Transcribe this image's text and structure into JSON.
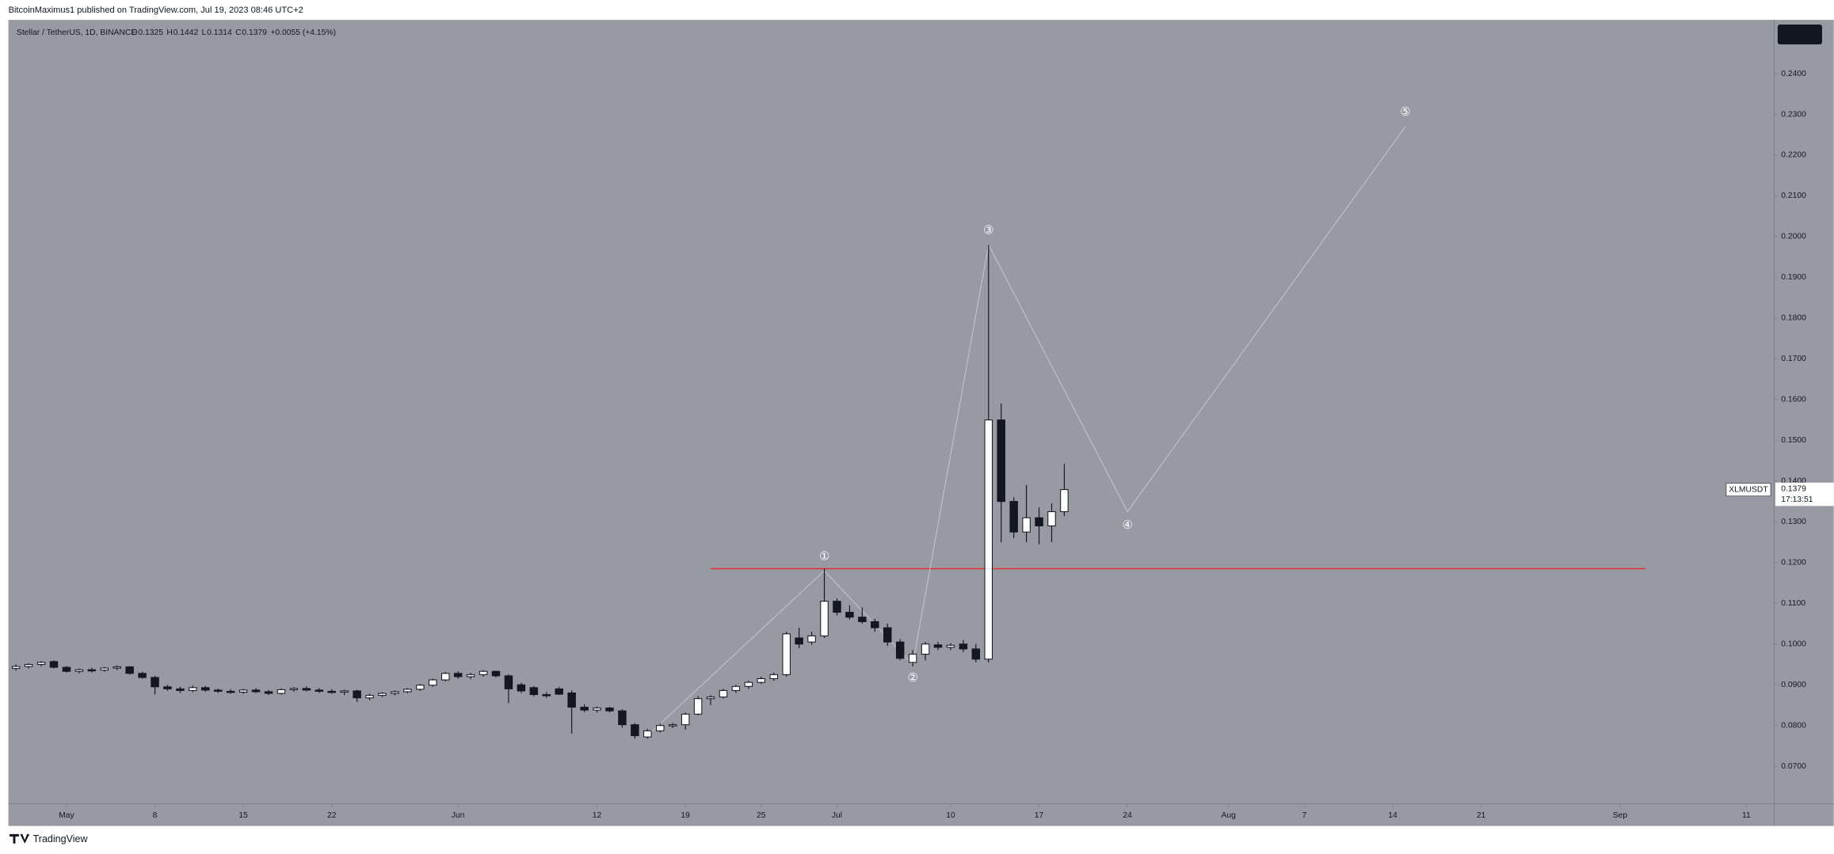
{
  "header": "BitcoinMaximus1 published on TradingView.com, Jul 19, 2023 08:46 UTC+2",
  "footer": "TradingView",
  "chart_data": {
    "type": "candlestick",
    "legend": {
      "symbol": "Stellar / TetherUS, 1D, BINANCE",
      "items": [
        "O",
        "0.1325",
        "H",
        "0.1442",
        "L",
        "0.1314",
        "C",
        "0.1379",
        "+0.0055 (+4.15%)"
      ]
    },
    "last_price": {
      "symbol": "XLMUSDT",
      "price": "0.1379",
      "countdown": "17:13:51"
    },
    "x": [
      -4,
      -3,
      -2,
      -1,
      0,
      1,
      2,
      3,
      4,
      5,
      6,
      7,
      8,
      9,
      10,
      11,
      12,
      13,
      14,
      15,
      16,
      17,
      18,
      19,
      20,
      21,
      22,
      23,
      24,
      25,
      26,
      27,
      28,
      29,
      30,
      31,
      32,
      33,
      34,
      35,
      36,
      37,
      38,
      39,
      40,
      41,
      42,
      43,
      44,
      45,
      46,
      47,
      48,
      49,
      50,
      51,
      52,
      53,
      54,
      55,
      56,
      57,
      58,
      59,
      60,
      61,
      62,
      63,
      64,
      65,
      66,
      67,
      68,
      69,
      70,
      71,
      72,
      73,
      74,
      75,
      76,
      77,
      78,
      79
    ],
    "open": [
      0.094,
      0.0945,
      0.095,
      0.0957,
      0.0943,
      0.0933,
      0.0937,
      0.0936,
      0.0941,
      0.0944,
      0.0928,
      0.0918,
      0.0895,
      0.089,
      0.0886,
      0.0893,
      0.0887,
      0.0884,
      0.0882,
      0.0887,
      0.0883,
      0.0879,
      0.0888,
      0.0891,
      0.0887,
      0.0884,
      0.0882,
      0.0885,
      0.0868,
      0.0874,
      0.0879,
      0.0883,
      0.0889,
      0.0899,
      0.0912,
      0.0928,
      0.092,
      0.0925,
      0.0933,
      0.0922,
      0.09,
      0.0893,
      0.0876,
      0.089,
      0.088,
      0.0845,
      0.0838,
      0.0843,
      0.0836,
      0.0802,
      0.0772,
      0.0787,
      0.08,
      0.0802,
      0.0828,
      0.0866,
      0.087,
      0.0886,
      0.0896,
      0.0906,
      0.0915,
      0.0925,
      0.1015,
      0.1005,
      0.102,
      0.1105,
      0.1078,
      0.1066,
      0.1055,
      0.104,
      0.1005,
      0.0955,
      0.0975,
      0.0998,
      0.0992,
      0.1,
      0.0988,
      0.0963,
      0.155,
      0.135,
      0.1275,
      0.131,
      0.129,
      0.1325
    ],
    "high": [
      0.095,
      0.0953,
      0.0958,
      0.096,
      0.0946,
      0.094,
      0.0942,
      0.0944,
      0.0948,
      0.0946,
      0.0932,
      0.0922,
      0.09,
      0.0895,
      0.0898,
      0.0897,
      0.0891,
      0.0889,
      0.089,
      0.0892,
      0.0887,
      0.0891,
      0.0894,
      0.0896,
      0.0892,
      0.0889,
      0.0888,
      0.0888,
      0.0878,
      0.0882,
      0.0886,
      0.0892,
      0.0902,
      0.0915,
      0.0932,
      0.0933,
      0.0929,
      0.0936,
      0.0935,
      0.0926,
      0.0905,
      0.0897,
      0.0882,
      0.0895,
      0.0886,
      0.0852,
      0.0847,
      0.0846,
      0.084,
      0.0806,
      0.0792,
      0.0805,
      0.0806,
      0.0832,
      0.0872,
      0.0875,
      0.089,
      0.09,
      0.091,
      0.092,
      0.093,
      0.103,
      0.104,
      0.103,
      0.1185,
      0.1112,
      0.1095,
      0.109,
      0.1062,
      0.105,
      0.1012,
      0.0985,
      0.1005,
      0.1005,
      0.1002,
      0.101,
      0.1,
      0.198,
      0.159,
      0.136,
      0.139,
      0.1335,
      0.1345,
      0.1442
    ],
    "low": [
      0.0935,
      0.094,
      0.0945,
      0.094,
      0.093,
      0.0928,
      0.093,
      0.0932,
      0.0936,
      0.0925,
      0.0915,
      0.0876,
      0.0885,
      0.088,
      0.0882,
      0.0883,
      0.088,
      0.0878,
      0.0878,
      0.088,
      0.0875,
      0.0876,
      0.0883,
      0.0884,
      0.088,
      0.0878,
      0.0875,
      0.0858,
      0.0862,
      0.087,
      0.0874,
      0.0879,
      0.0885,
      0.0895,
      0.0908,
      0.0915,
      0.0914,
      0.092,
      0.0918,
      0.0855,
      0.088,
      0.0872,
      0.0868,
      0.0875,
      0.078,
      0.0833,
      0.0832,
      0.0832,
      0.0795,
      0.0768,
      0.0768,
      0.0783,
      0.0794,
      0.079,
      0.0825,
      0.085,
      0.0866,
      0.088,
      0.089,
      0.0902,
      0.091,
      0.092,
      0.099,
      0.0998,
      0.1015,
      0.107,
      0.106,
      0.105,
      0.103,
      0.0995,
      0.096,
      0.0945,
      0.096,
      0.0985,
      0.0985,
      0.098,
      0.0955,
      0.0955,
      0.125,
      0.126,
      0.125,
      0.1245,
      0.125,
      0.1314
    ],
    "close": [
      0.0945,
      0.095,
      0.0955,
      0.0943,
      0.0933,
      0.0937,
      0.0934,
      0.0941,
      0.0944,
      0.0928,
      0.0918,
      0.0895,
      0.089,
      0.0886,
      0.0893,
      0.0887,
      0.0884,
      0.0882,
      0.0887,
      0.0883,
      0.0879,
      0.0888,
      0.0891,
      0.0887,
      0.0884,
      0.0882,
      0.0885,
      0.0868,
      0.0874,
      0.0879,
      0.0883,
      0.0889,
      0.0899,
      0.0912,
      0.0928,
      0.092,
      0.0925,
      0.0933,
      0.0922,
      0.089,
      0.0885,
      0.0876,
      0.0873,
      0.0877,
      0.0845,
      0.0838,
      0.0843,
      0.0836,
      0.0802,
      0.0775,
      0.0787,
      0.08,
      0.0802,
      0.0828,
      0.0866,
      0.087,
      0.0886,
      0.0896,
      0.0906,
      0.0915,
      0.0925,
      0.1025,
      0.1,
      0.102,
      0.1105,
      0.1078,
      0.1066,
      0.1055,
      0.104,
      0.1005,
      0.0965,
      0.0975,
      0.1,
      0.0992,
      0.0997,
      0.0988,
      0.0963,
      0.155,
      0.135,
      0.1275,
      0.131,
      0.129,
      0.1325,
      0.1379
    ],
    "up_color": "#ffffff",
    "down_color": "#131722",
    "resistance": {
      "value": 0.1185,
      "x": [
        51,
        125
      ],
      "color": "#e0312f"
    },
    "waves": {
      "x": [
        46,
        60,
        67,
        73,
        84,
        106
      ],
      "y": [
        0.0775,
        0.118,
        0.095,
        0.198,
        0.1325,
        0.227
      ],
      "labels": [
        null,
        "①",
        "②",
        "③",
        "④",
        "⑤"
      ],
      "color": "#c9ccd3"
    },
    "xlim": [
      -4.6,
      135.2
    ],
    "ylim": [
      0.0608,
      0.2532
    ],
    "xticks": [
      {
        "value": 0,
        "label": "May"
      },
      {
        "value": 7,
        "label": "8"
      },
      {
        "value": 14,
        "label": "15"
      },
      {
        "value": 21,
        "label": "22"
      },
      {
        "value": 31,
        "label": "Jun"
      },
      {
        "value": 42,
        "label": "12"
      },
      {
        "value": 49,
        "label": "19"
      },
      {
        "value": 55,
        "label": "25"
      },
      {
        "value": 61,
        "label": "Jul"
      },
      {
        "value": 70,
        "label": "10"
      },
      {
        "value": 77,
        "label": "17"
      },
      {
        "value": 84,
        "label": "24"
      },
      {
        "value": 92,
        "label": "Aug"
      },
      {
        "value": 98,
        "label": "7"
      },
      {
        "value": 105,
        "label": "14"
      },
      {
        "value": 112,
        "label": "21"
      },
      {
        "value": 123,
        "label": "Sep"
      },
      {
        "value": 133,
        "label": "11"
      }
    ],
    "yticks": [
      {
        "value": 0.07,
        "label": "0.0700"
      },
      {
        "value": 0.08,
        "label": "0.0800"
      },
      {
        "value": 0.09,
        "label": "0.0900"
      },
      {
        "value": 0.1,
        "label": "0.1000"
      },
      {
        "value": 0.11,
        "label": "0.1100"
      },
      {
        "value": 0.12,
        "label": "0.1200"
      },
      {
        "value": 0.13,
        "label": "0.1300"
      },
      {
        "value": 0.14,
        "label": "0.1400"
      },
      {
        "value": 0.15,
        "label": "0.1500"
      },
      {
        "value": 0.16,
        "label": "0.1600"
      },
      {
        "value": 0.17,
        "label": "0.1700"
      },
      {
        "value": 0.18,
        "label": "0.1800"
      },
      {
        "value": 0.19,
        "label": "0.1900"
      },
      {
        "value": 0.2,
        "label": "0.2000"
      },
      {
        "value": 0.21,
        "label": "0.2100"
      },
      {
        "value": 0.22,
        "label": "0.2200"
      },
      {
        "value": 0.23,
        "label": "0.2300"
      },
      {
        "value": 0.24,
        "label": "0.2400"
      }
    ]
  }
}
